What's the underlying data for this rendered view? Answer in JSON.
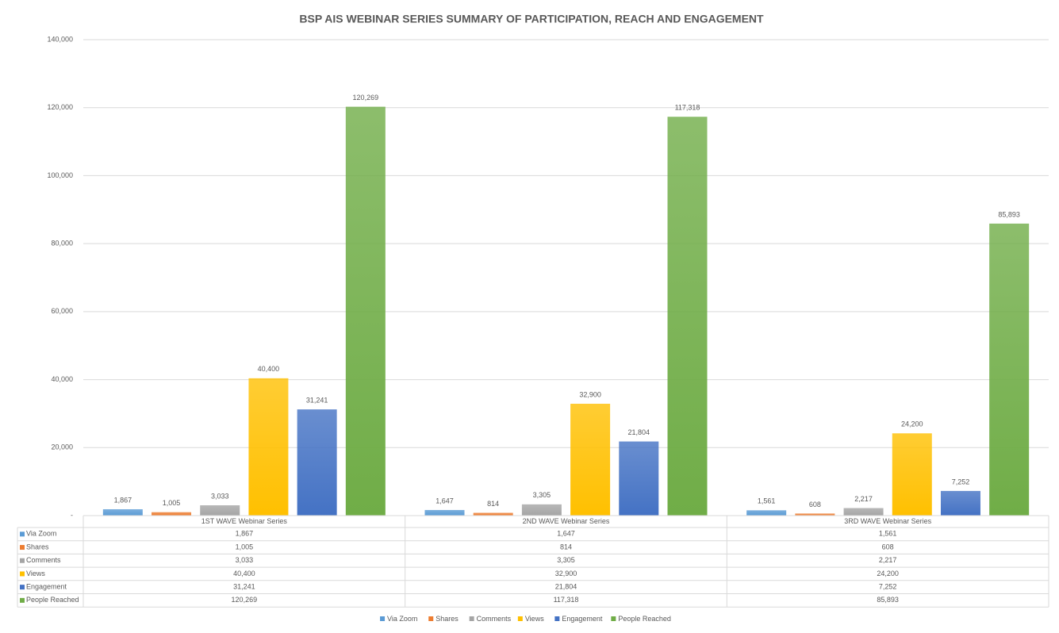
{
  "chart_data": {
    "type": "bar",
    "title": "BSP AIS WEBINAR SERIES SUMMARY OF PARTICIPATION, REACH AND ENGAGEMENT",
    "categories": [
      "1ST WAVE Webinar Series",
      "2ND WAVE Webinar Series",
      "3RD WAVE Webinar Series"
    ],
    "series": [
      {
        "name": "Via Zoom",
        "color": "#5b9bd5",
        "values": [
          1867,
          1647,
          1561
        ],
        "value_labels": [
          "1,867",
          "1,647",
          "1,561"
        ]
      },
      {
        "name": "Shares",
        "color": "#ed7d31",
        "values": [
          1005,
          814,
          608
        ],
        "value_labels": [
          "1,005",
          "814",
          "608"
        ]
      },
      {
        "name": "Comments",
        "color": "#a5a5a5",
        "values": [
          3033,
          3305,
          2217
        ],
        "value_labels": [
          "3,033",
          "3,305",
          "2,217"
        ]
      },
      {
        "name": "Views",
        "color": "#ffc000",
        "values": [
          40400,
          32900,
          24200
        ],
        "value_labels": [
          "40,400",
          "32,900",
          "24,200"
        ]
      },
      {
        "name": "Engagement",
        "color": "#4472c4",
        "values": [
          31241,
          21804,
          7252
        ],
        "value_labels": [
          "31,241",
          "21,804",
          "7,252"
        ]
      },
      {
        "name": "People Reached",
        "color": "#70ad47",
        "values": [
          120269,
          117318,
          85893
        ],
        "value_labels": [
          "120,269",
          "117,318",
          "85,893"
        ]
      }
    ],
    "ylim": [
      0,
      140000
    ],
    "yticks": [
      {
        "value": 0,
        "label": "-"
      },
      {
        "value": 20000,
        "label": "20,000"
      },
      {
        "value": 40000,
        "label": "40,000"
      },
      {
        "value": 60000,
        "label": "60,000"
      },
      {
        "value": 80000,
        "label": "80,000"
      },
      {
        "value": 100000,
        "label": "100,000"
      },
      {
        "value": 120000,
        "label": "120,000"
      },
      {
        "value": 140000,
        "label": "140,000"
      }
    ],
    "grid": true
  }
}
